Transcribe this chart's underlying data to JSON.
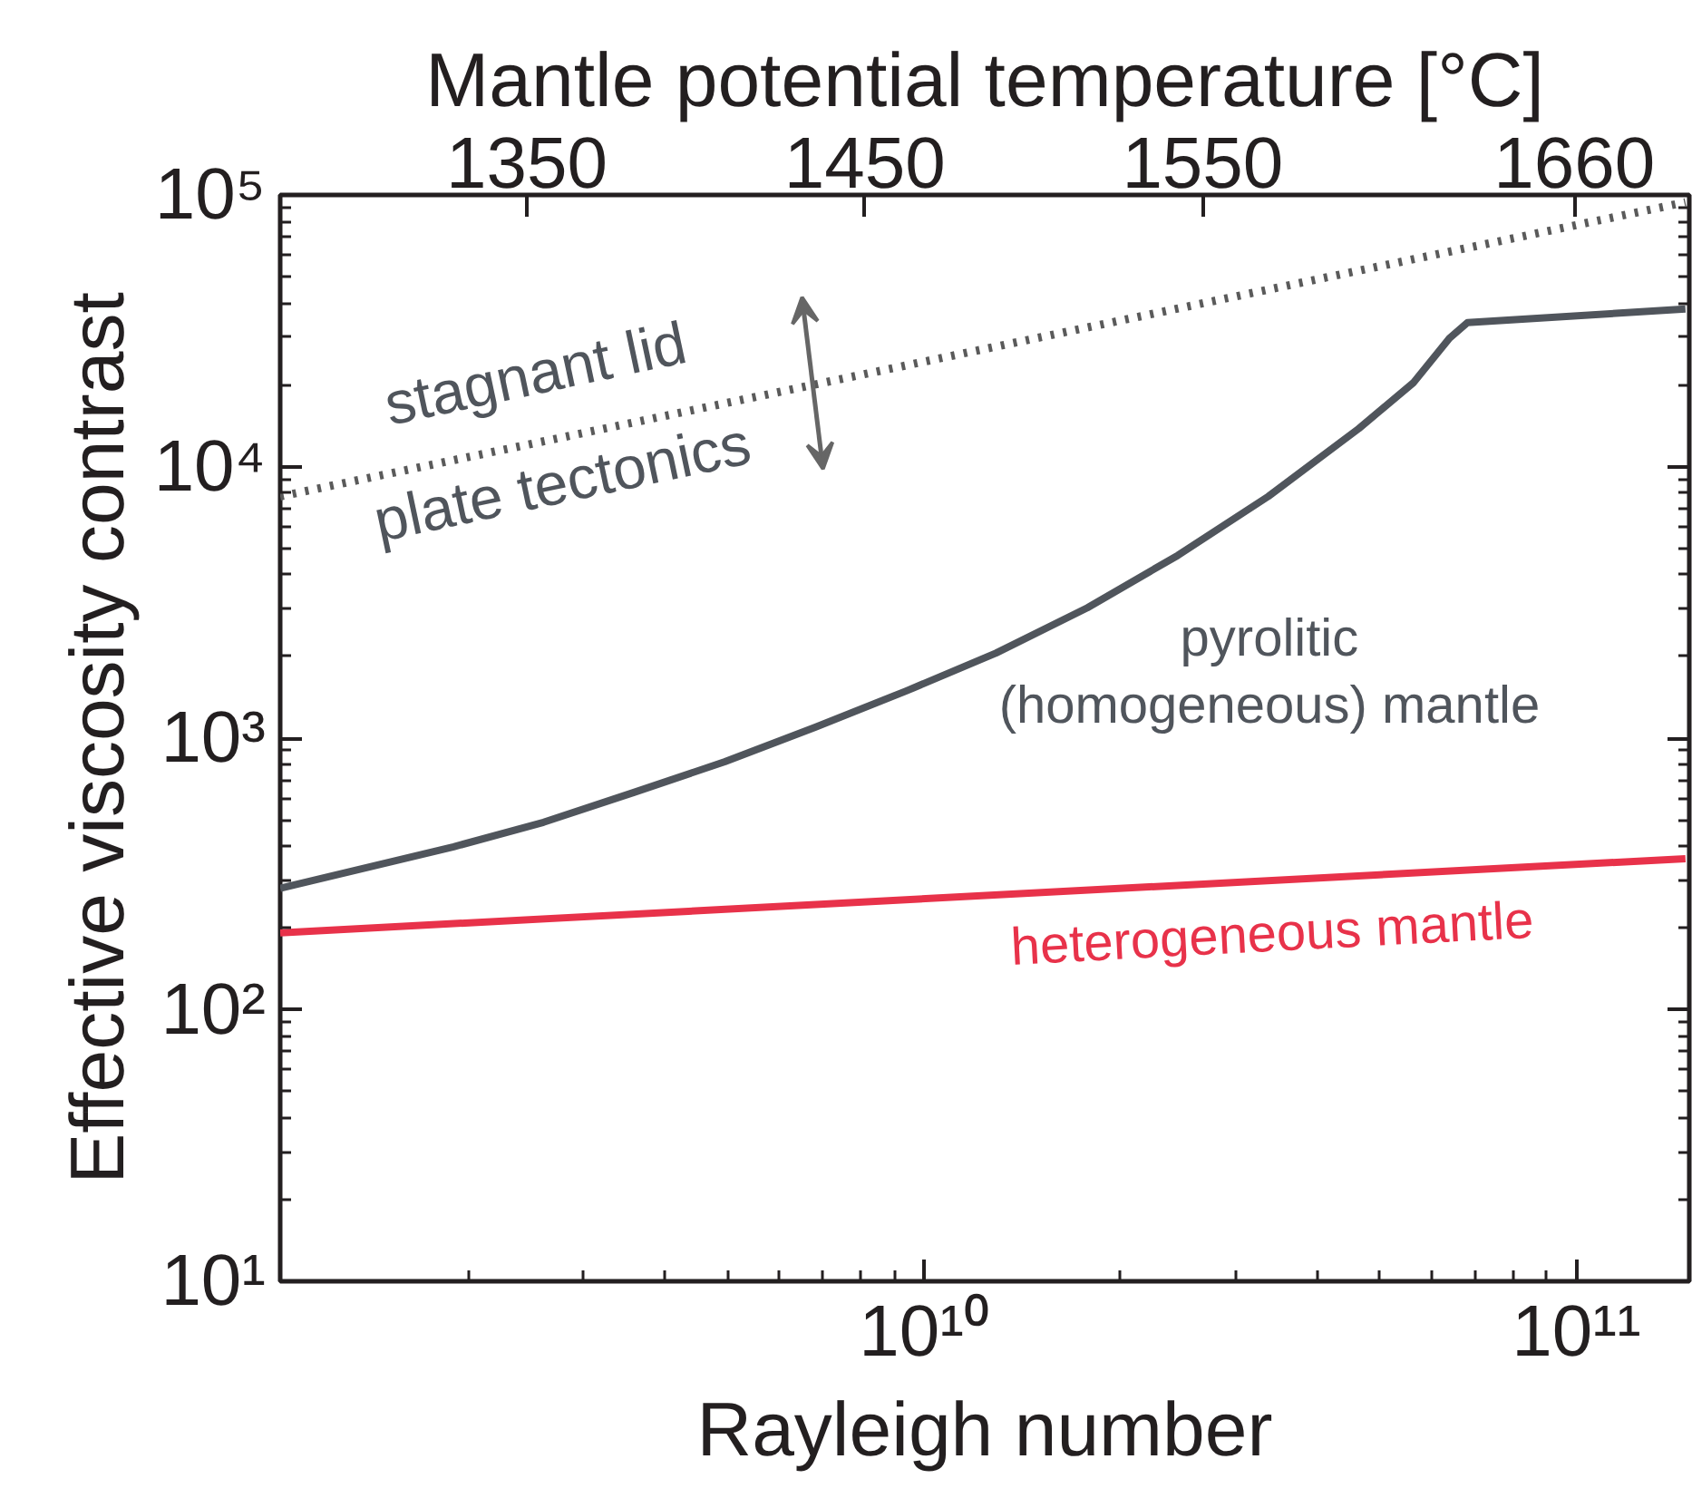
{
  "chart_data": {
    "type": "line",
    "xlabel": "Rayleigh number",
    "ylabel": "Effective viscosity contrast",
    "x2label": "Mantle potential temperature [°C]",
    "log": "xy",
    "grid": false,
    "xlim": [
      1030000000.0,
      149000000000.0
    ],
    "ylim": [
      10,
      100000
    ],
    "xticks": [
      {
        "value": 10000000000.0,
        "label": "10¹⁰"
      },
      {
        "value": 100000000000.0,
        "label": "10¹¹"
      }
    ],
    "yticks": [
      {
        "value": 10,
        "label": "10¹"
      },
      {
        "value": 100,
        "label": "10²"
      },
      {
        "value": 1000,
        "label": "10³"
      },
      {
        "value": 10000,
        "label": "10⁴"
      },
      {
        "value": 100000,
        "label": "10⁵"
      }
    ],
    "x2lim": [
      1277,
      1694
    ],
    "x2ticks": [
      1350,
      1450,
      1550,
      1660
    ],
    "series": [
      {
        "line_style": "dotted",
        "color": "#5a5a5a",
        "x": [
          1030000000.0,
          147000000000.0
        ],
        "values": [
          7760,
          94000
        ]
      },
      {
        "line_style": "solid",
        "color": "#50555c",
        "x": [
          1030000000.0,
          1900000000.0,
          2610000000.0,
          3590000000.0,
          4950000000.0,
          6810000000.0,
          9380000000.0,
          12900000000.0,
          17800000000.0,
          24500000000.0,
          33700000000.0,
          46400000000.0,
          56200000000.0,
          63900000000.0,
          68100000000.0,
          147000000000.0
        ],
        "values": [
          280,
          398,
          490,
          631,
          819,
          1096,
          1490,
          2057,
          3020,
          4710,
          7760,
          13800,
          20300,
          29700,
          33900,
          38000
        ]
      },
      {
        "line_style": "solid",
        "color": "#e8324a",
        "x": [
          1030000000.0,
          147000000000.0
        ],
        "values": [
          192,
          360
        ]
      }
    ],
    "annotations": [
      "stagnant lid",
      "plate tectonics",
      "pyrolitic\n(homogeneous) mantle",
      "heterogeneous mantle"
    ]
  }
}
